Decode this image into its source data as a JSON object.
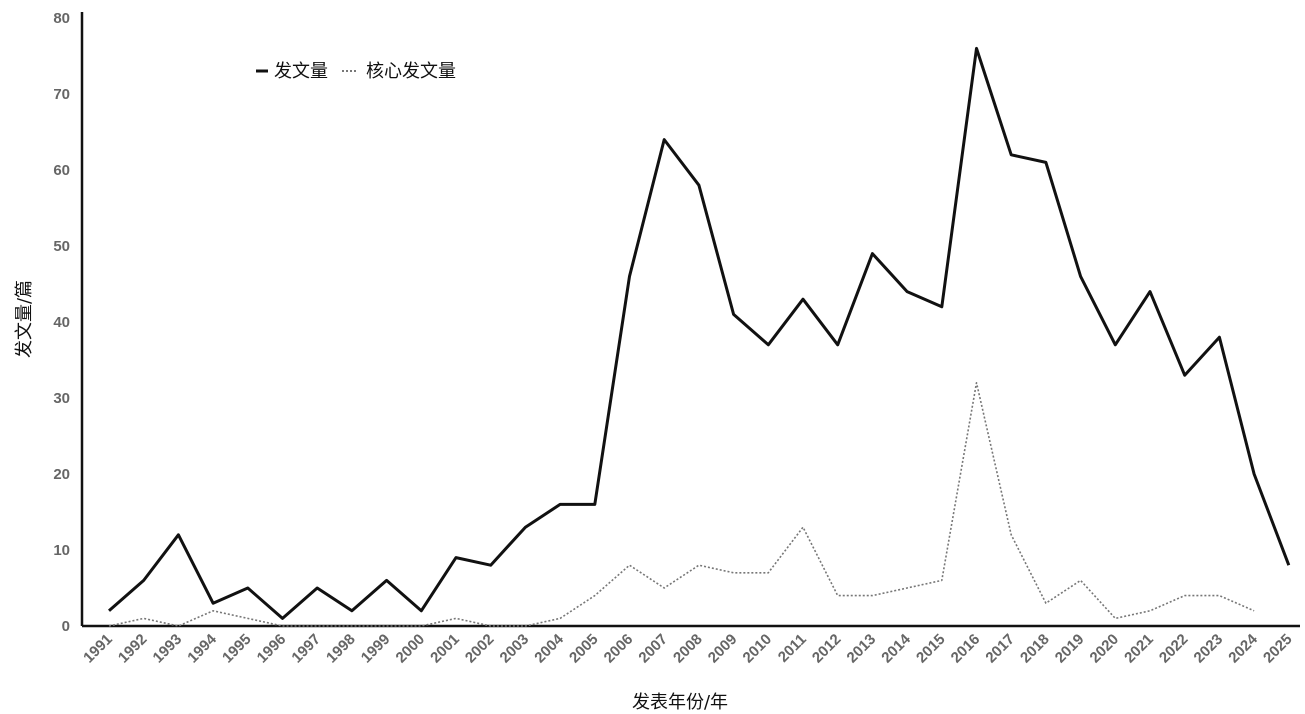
{
  "chart_data": {
    "type": "line",
    "title": "",
    "xlabel": "发表年份/年",
    "ylabel": "发文量/篇",
    "ylim": [
      0,
      80
    ],
    "yticks": [
      0,
      10,
      20,
      30,
      40,
      50,
      60,
      70,
      80
    ],
    "grid": false,
    "legend_position": "top-left",
    "x": [
      "1991",
      "1992",
      "1993",
      "1994",
      "1995",
      "1996",
      "1997",
      "1998",
      "1999",
      "2000",
      "2001",
      "2002",
      "2003",
      "2004",
      "2005",
      "2006",
      "2007",
      "2008",
      "2009",
      "2010",
      "2011",
      "2012",
      "2013",
      "2014",
      "2015",
      "2016",
      "2017",
      "2018",
      "2019",
      "2020",
      "2021",
      "2022",
      "2023",
      "2024",
      "2025"
    ],
    "series": [
      {
        "name": "发文量",
        "style": "solid",
        "color": "#111111",
        "values": [
          2,
          6,
          12,
          3,
          5,
          1,
          5,
          2,
          6,
          2,
          9,
          8,
          13,
          16,
          16,
          46,
          64,
          58,
          41,
          37,
          43,
          37,
          49,
          44,
          42,
          76,
          62,
          61,
          46,
          37,
          44,
          33,
          38,
          20,
          8
        ]
      },
      {
        "name": "核心发文量",
        "style": "dotted",
        "color": "#777777",
        "values": [
          0,
          1,
          0,
          2,
          1,
          0,
          0,
          0,
          0,
          0,
          1,
          0,
          0,
          1,
          4,
          8,
          5,
          8,
          7,
          7,
          13,
          4,
          4,
          5,
          6,
          32,
          12,
          3,
          6,
          1,
          2,
          4,
          4,
          2,
          null
        ]
      }
    ]
  }
}
